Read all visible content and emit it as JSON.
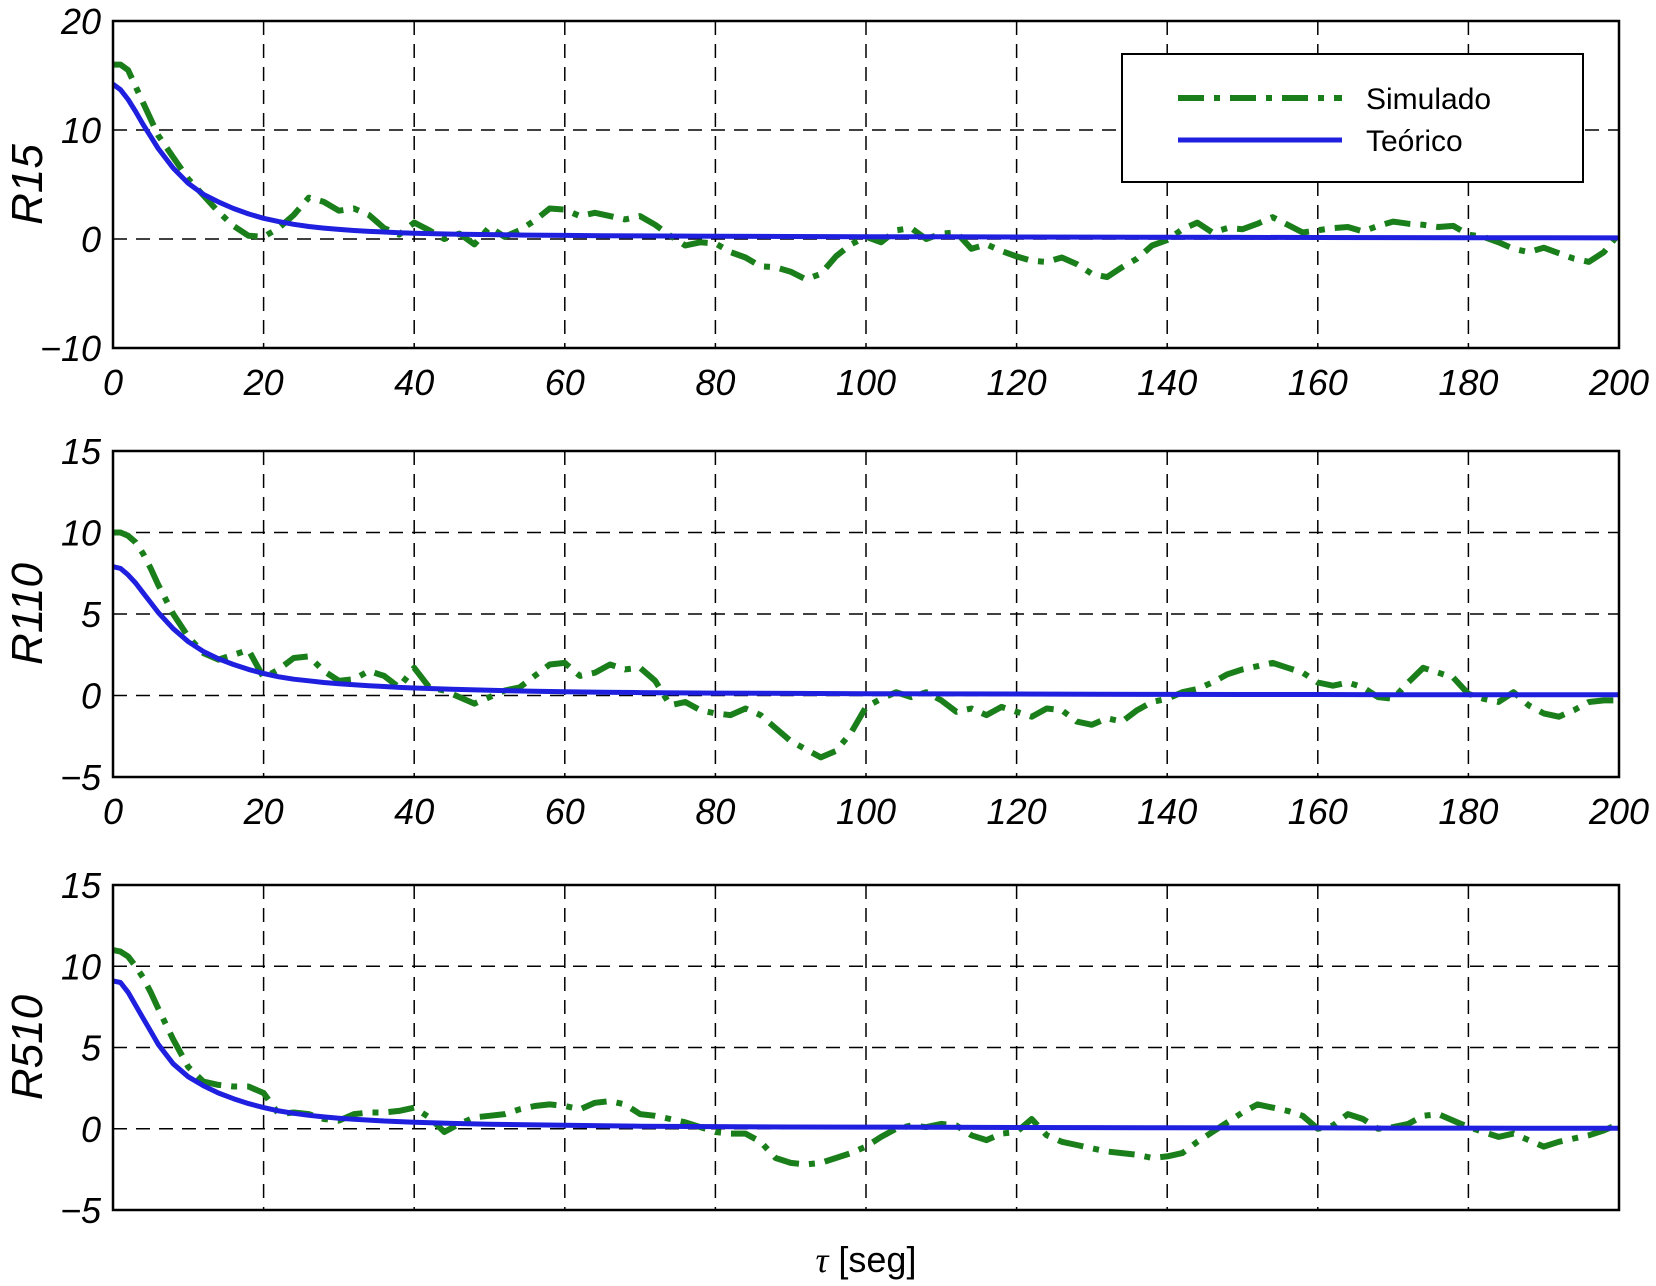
{
  "chart_data": [
    {
      "type": "line",
      "ylabel": "R15",
      "xlabel": "",
      "xlim": [
        0,
        200
      ],
      "ylim": [
        -10,
        20
      ],
      "xticks": [
        0,
        20,
        40,
        60,
        80,
        100,
        120,
        140,
        160,
        180,
        200
      ],
      "yticks": [
        -10,
        0,
        10,
        20
      ],
      "xtick_labels": [
        "0",
        "20",
        "40",
        "60",
        "80",
        "100",
        "120",
        "140",
        "160",
        "180",
        "200"
      ],
      "ytick_labels": [
        "−10",
        "0",
        "10",
        "20"
      ],
      "grid": true,
      "legend": {
        "position": "top-right",
        "entries": [
          {
            "label": "Simulado",
            "color": "#1a7f1a",
            "style": "dash-dot"
          },
          {
            "label": "Teórico",
            "color": "#1f1fe0",
            "style": "solid"
          }
        ]
      },
      "series": [
        {
          "name": "Simulado",
          "color": "#1a7f1a",
          "style": "dash-dot",
          "x": [
            0,
            1,
            2,
            3,
            4,
            5,
            6,
            8,
            10,
            12,
            14,
            16,
            18,
            20,
            22,
            24,
            26,
            28,
            30,
            32,
            34,
            36,
            38,
            40,
            42,
            44,
            46,
            48,
            50,
            52,
            54,
            56,
            58,
            60,
            62,
            64,
            66,
            68,
            70,
            72,
            74,
            76,
            78,
            80,
            82,
            84,
            86,
            88,
            90,
            92,
            94,
            96,
            98,
            100,
            102,
            104,
            106,
            108,
            110,
            112,
            114,
            116,
            118,
            120,
            122,
            124,
            126,
            128,
            130,
            132,
            134,
            136,
            138,
            140,
            142,
            144,
            146,
            148,
            150,
            152,
            154,
            156,
            158,
            160,
            162,
            164,
            166,
            168,
            170,
            172,
            174,
            176,
            178,
            180,
            182,
            184,
            186,
            188,
            190,
            192,
            194,
            196,
            198,
            200
          ],
          "y": [
            16,
            16,
            15.5,
            14,
            12.5,
            11,
            9.5,
            7.5,
            5.5,
            4,
            2.5,
            1.2,
            0.3,
            0.2,
            1,
            2.2,
            3.8,
            3.4,
            2.6,
            2.8,
            2.2,
            1,
            0.4,
            1.5,
            0.8,
            0,
            0.5,
            -0.5,
            1.1,
            0.2,
            0.8,
            1.7,
            2.8,
            2.7,
            2.1,
            2.4,
            2.1,
            1.8,
            2.1,
            1.3,
            0.3,
            -0.6,
            -0.3,
            -0.4,
            -1.2,
            -1.7,
            -2.5,
            -2.6,
            -3,
            -3.7,
            -3.2,
            -1.6,
            -0.5,
            0.2,
            -0.3,
            0.8,
            1,
            0,
            0.5,
            0.6,
            -0.9,
            -0.5,
            -1.1,
            -1.6,
            -2,
            -2.1,
            -1.7,
            -2.3,
            -3.2,
            -3.5,
            -2.6,
            -1.8,
            -0.6,
            -0.1,
            0.9,
            1.5,
            0.6,
            1,
            0.9,
            1.4,
            2,
            1.3,
            0.6,
            0.8,
            1,
            1.1,
            0.7,
            1.2,
            1.6,
            1.4,
            1.3,
            1.1,
            1.2,
            0.4,
            0.2,
            -0.3,
            -0.9,
            -1.2,
            -0.8,
            -1.3,
            -1.8,
            -2.1,
            -1.2,
            0.5
          ]
        },
        {
          "name": "Teórico",
          "color": "#1f1fe0",
          "style": "solid",
          "x": [
            0,
            1,
            2,
            3,
            4,
            5,
            6,
            8,
            10,
            12,
            14,
            16,
            18,
            20,
            22,
            24,
            26,
            28,
            30,
            32,
            34,
            36,
            38,
            40,
            45,
            50,
            55,
            60,
            65,
            70,
            80,
            90,
            100,
            110,
            120,
            130,
            140,
            150,
            160,
            170,
            180,
            190,
            200
          ],
          "y": [
            14.2,
            13.7,
            12.8,
            11.7,
            10.5,
            9.4,
            8.3,
            6.5,
            5.1,
            4.1,
            3.4,
            2.8,
            2.3,
            1.9,
            1.6,
            1.35,
            1.15,
            1,
            0.88,
            0.78,
            0.7,
            0.64,
            0.58,
            0.53,
            0.45,
            0.4,
            0.36,
            0.33,
            0.3,
            0.28,
            0.25,
            0.23,
            0.21,
            0.2,
            0.18,
            0.17,
            0.16,
            0.15,
            0.14,
            0.13,
            0.12,
            0.11,
            0.1
          ]
        }
      ]
    },
    {
      "type": "line",
      "ylabel": "R110",
      "xlabel": "",
      "xlim": [
        0,
        200
      ],
      "ylim": [
        -5,
        15
      ],
      "xticks": [
        0,
        20,
        40,
        60,
        80,
        100,
        120,
        140,
        160,
        180,
        200
      ],
      "yticks": [
        -5,
        0,
        5,
        10,
        15
      ],
      "xtick_labels": [
        "0",
        "20",
        "40",
        "60",
        "80",
        "100",
        "120",
        "140",
        "160",
        "180",
        "200"
      ],
      "ytick_labels": [
        "−5",
        "0",
        "5",
        "10",
        "15"
      ],
      "grid": true,
      "series": [
        {
          "name": "Simulado",
          "color": "#1a7f1a",
          "style": "dash-dot",
          "x": [
            0,
            1,
            2,
            3,
            4,
            5,
            6,
            8,
            10,
            12,
            14,
            16,
            18,
            20,
            22,
            24,
            26,
            28,
            30,
            32,
            34,
            36,
            38,
            40,
            42,
            44,
            46,
            48,
            50,
            52,
            54,
            56,
            58,
            60,
            62,
            64,
            66,
            68,
            70,
            72,
            74,
            76,
            78,
            80,
            82,
            84,
            86,
            88,
            90,
            92,
            94,
            96,
            98,
            100,
            102,
            104,
            106,
            108,
            110,
            112,
            114,
            116,
            118,
            120,
            122,
            124,
            126,
            128,
            130,
            132,
            134,
            136,
            138,
            140,
            142,
            144,
            146,
            148,
            150,
            152,
            154,
            156,
            158,
            160,
            162,
            164,
            166,
            168,
            170,
            172,
            174,
            176,
            178,
            180,
            182,
            184,
            186,
            188,
            190,
            192,
            194,
            196,
            198,
            200
          ],
          "y": [
            10,
            10,
            9.8,
            9.4,
            8.7,
            7.8,
            6.8,
            5,
            3.6,
            2.6,
            2.2,
            2.5,
            2.8,
            1.1,
            1.6,
            2.3,
            2.4,
            1.5,
            0.9,
            1,
            1.5,
            1.2,
            0.5,
            1.7,
            0.5,
            0.3,
            -0.1,
            -0.5,
            -0.1,
            0.3,
            0.5,
            1.2,
            1.9,
            2,
            1.2,
            1.4,
            1.9,
            1.6,
            1.7,
            0.9,
            -0.6,
            -0.4,
            -0.9,
            -1.1,
            -1.2,
            -0.8,
            -1.2,
            -2,
            -2.8,
            -3.3,
            -3.8,
            -3.4,
            -2.3,
            -0.7,
            -0.2,
            0.2,
            -0.1,
            0.2,
            -0.3,
            -1,
            -0.8,
            -1.2,
            -0.7,
            -1,
            -1.3,
            -0.8,
            -0.9,
            -1.6,
            -1.8,
            -1.4,
            -1.6,
            -0.9,
            -0.4,
            -0.2,
            0.2,
            0.4,
            0.8,
            1.3,
            1.6,
            1.8,
            2,
            1.7,
            1.4,
            0.8,
            0.6,
            0.8,
            0.5,
            -0.1,
            -0.2,
            0.8,
            1.7,
            1.4,
            1.1,
            0.1,
            -0.2,
            -0.4,
            0.2,
            -0.6,
            -1.1,
            -1.3,
            -0.9,
            -0.4,
            -0.3,
            -0.3
          ]
        },
        {
          "name": "Teórico",
          "color": "#1f1fe0",
          "style": "solid",
          "x": [
            0,
            1,
            2,
            3,
            4,
            5,
            6,
            8,
            10,
            12,
            14,
            16,
            18,
            20,
            22,
            24,
            26,
            28,
            30,
            32,
            34,
            36,
            38,
            40,
            45,
            50,
            55,
            60,
            65,
            70,
            80,
            90,
            100,
            110,
            120,
            130,
            140,
            150,
            160,
            170,
            180,
            190,
            200
          ],
          "y": [
            7.9,
            7.8,
            7.4,
            6.9,
            6.3,
            5.7,
            5.1,
            4.1,
            3.3,
            2.7,
            2.25,
            1.9,
            1.6,
            1.35,
            1.15,
            1,
            0.9,
            0.8,
            0.72,
            0.66,
            0.6,
            0.55,
            0.5,
            0.46,
            0.38,
            0.32,
            0.27,
            0.23,
            0.2,
            0.18,
            0.15,
            0.13,
            0.11,
            0.1,
            0.09,
            0.08,
            0.07,
            0.06,
            0.06,
            0.05,
            0.05,
            0.04,
            0.04
          ]
        }
      ]
    },
    {
      "type": "line",
      "ylabel": "R510",
      "xlabel": "τ [seg]",
      "xlim": [
        0,
        200
      ],
      "ylim": [
        -5,
        15
      ],
      "xticks": [
        0,
        20,
        40,
        60,
        80,
        100,
        120,
        140,
        160,
        180,
        200
      ],
      "yticks": [
        -5,
        0,
        5,
        10,
        15
      ],
      "ytick_labels": [
        "−5",
        "0",
        "5",
        "10",
        "15"
      ],
      "grid": true,
      "series": [
        {
          "name": "Simulado",
          "color": "#1a7f1a",
          "style": "dash-dot",
          "x": [
            0,
            1,
            2,
            3,
            4,
            5,
            6,
            8,
            10,
            12,
            14,
            16,
            18,
            20,
            22,
            24,
            26,
            28,
            30,
            32,
            34,
            36,
            38,
            40,
            42,
            44,
            46,
            48,
            50,
            52,
            54,
            56,
            58,
            60,
            62,
            64,
            66,
            68,
            70,
            72,
            74,
            76,
            78,
            80,
            82,
            84,
            86,
            88,
            90,
            92,
            94,
            96,
            98,
            100,
            102,
            104,
            106,
            108,
            110,
            112,
            114,
            116,
            118,
            120,
            122,
            124,
            126,
            128,
            130,
            132,
            134,
            136,
            138,
            140,
            142,
            144,
            146,
            148,
            150,
            152,
            154,
            156,
            158,
            160,
            162,
            164,
            166,
            168,
            170,
            172,
            174,
            176,
            178,
            180,
            182,
            184,
            186,
            188,
            190,
            192,
            194,
            196,
            198,
            200
          ],
          "y": [
            11,
            10.9,
            10.6,
            10,
            9.3,
            8.4,
            7.4,
            5.5,
            3.8,
            2.9,
            2.7,
            2.6,
            2.6,
            2.2,
            0.9,
            1,
            0.9,
            0.6,
            0.5,
            0.9,
            1,
            1,
            1.1,
            1.3,
            0.7,
            -0.2,
            0.3,
            0.7,
            0.8,
            0.9,
            1.2,
            1.4,
            1.5,
            1.4,
            1.2,
            1.6,
            1.7,
            1.5,
            0.9,
            0.8,
            0.6,
            0.4,
            0.1,
            -0.2,
            -0.3,
            -0.3,
            -0.8,
            -1.8,
            -2.1,
            -2.2,
            -2.1,
            -1.8,
            -1.5,
            -1.1,
            -0.5,
            0,
            0.2,
            0.1,
            0.3,
            0.2,
            -0.4,
            -0.7,
            -0.3,
            -0.2,
            0.6,
            -0.4,
            -0.8,
            -1,
            -1.2,
            -1.4,
            -1.5,
            -1.6,
            -1.8,
            -1.7,
            -1.5,
            -0.8,
            -0.2,
            0.4,
            1,
            1.5,
            1.3,
            1.1,
            0.8,
            0,
            0.2,
            0.9,
            0.6,
            0,
            0.1,
            0.3,
            0.8,
            0.9,
            0.5,
            0.1,
            -0.2,
            -0.5,
            -0.3,
            -0.7,
            -1.1,
            -0.8,
            -0.6,
            -0.4,
            -0.1,
            0.3
          ]
        },
        {
          "name": "Teórico",
          "color": "#1f1fe0",
          "style": "solid",
          "x": [
            0,
            1,
            2,
            3,
            4,
            5,
            6,
            8,
            10,
            12,
            14,
            16,
            18,
            20,
            22,
            24,
            26,
            28,
            30,
            32,
            34,
            36,
            38,
            40,
            45,
            50,
            55,
            60,
            65,
            70,
            80,
            90,
            100,
            110,
            120,
            130,
            140,
            150,
            160,
            170,
            180,
            190,
            200
          ],
          "y": [
            9.1,
            9,
            8.4,
            7.6,
            6.8,
            6,
            5.2,
            4,
            3.2,
            2.65,
            2.2,
            1.85,
            1.55,
            1.3,
            1.1,
            0.95,
            0.83,
            0.73,
            0.65,
            0.58,
            0.53,
            0.48,
            0.44,
            0.4,
            0.33,
            0.28,
            0.24,
            0.21,
            0.18,
            0.16,
            0.13,
            0.11,
            0.1,
            0.09,
            0.08,
            0.07,
            0.06,
            0.05,
            0.05,
            0.04,
            0.04,
            0.03,
            0.03
          ]
        }
      ]
    }
  ]
}
